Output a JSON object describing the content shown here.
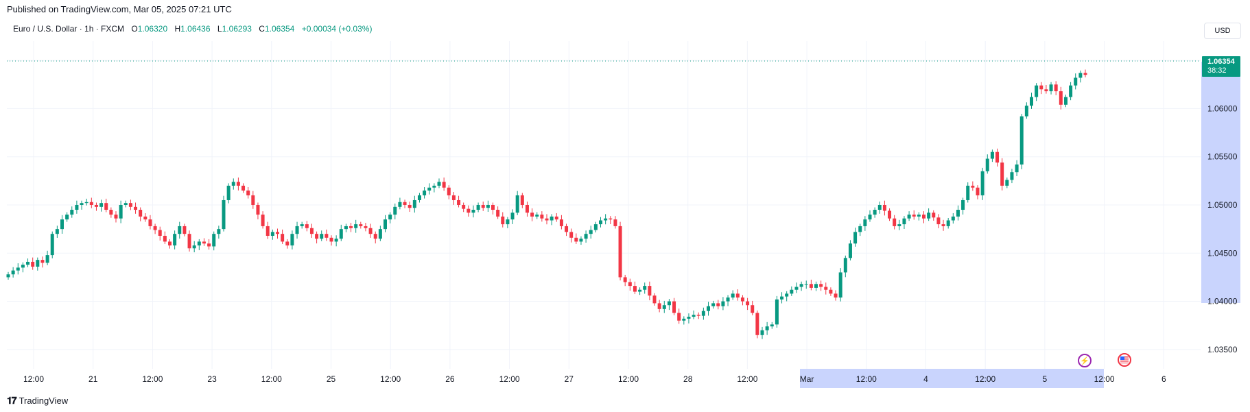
{
  "header": {
    "published": "Published on TradingView.com, Mar 05, 2025 07:21 UTC"
  },
  "legend": {
    "symbol": "Euro / U.S. Dollar · 1h · FXCM",
    "open_label": "O",
    "open": "1.06320",
    "high_label": "H",
    "high": "1.06436",
    "low_label": "L",
    "low": "1.06293",
    "close_label": "C",
    "close": "1.06354",
    "change": "+0.00034 (+0.03%)"
  },
  "price_scale": {
    "currency": "USD",
    "last_price": "1.06354",
    "countdown": "38:32"
  },
  "events": {
    "bolt_icon": "lightning-bolt-icon",
    "flag_icon": "us-flag-icon"
  },
  "footer": {
    "brand": "TradingView"
  },
  "colors": {
    "up": "#089981",
    "down": "#f23645",
    "grid": "#f0f3fa",
    "selection": "#c9d4fd"
  },
  "chart_data": {
    "type": "candlestick",
    "title": "Euro / U.S. Dollar · 1h · FXCM",
    "ylim": [
      1.033,
      1.067
    ],
    "y_ticks": [
      "1.06500",
      "1.06000",
      "1.05500",
      "1.05000",
      "1.04500",
      "1.04000",
      "1.03500"
    ],
    "x_ticks": [
      "12:00",
      "21",
      "12:00",
      "23",
      "12:00",
      "25",
      "12:00",
      "26",
      "12:00",
      "27",
      "12:00",
      "28",
      "12:00",
      "Mar",
      "12:00",
      "4",
      "12:00",
      "5",
      "12:00",
      "6"
    ],
    "grid": true,
    "candle_closes": [
      1.0428,
      1.0432,
      1.0435,
      1.0438,
      1.0441,
      1.0436,
      1.0443,
      1.044,
      1.0448,
      1.047,
      1.0475,
      1.0485,
      1.049,
      1.0495,
      1.05,
      1.0502,
      1.0503,
      1.05,
      1.0498,
      1.0502,
      1.0495,
      1.049,
      1.0486,
      1.05,
      1.0502,
      1.0498,
      1.0495,
      1.0488,
      1.0485,
      1.0478,
      1.0474,
      1.0468,
      1.0462,
      1.0458,
      1.047,
      1.0478,
      1.047,
      1.0455,
      1.0458,
      1.0462,
      1.046,
      1.0457,
      1.047,
      1.0475,
      1.0505,
      1.052,
      1.0524,
      1.052,
      1.0515,
      1.051,
      1.05,
      1.049,
      1.0478,
      1.0468,
      1.0472,
      1.047,
      1.0462,
      1.0458,
      1.047,
      1.0478,
      1.048,
      1.0476,
      1.047,
      1.0465,
      1.047,
      1.0466,
      1.0462,
      1.0465,
      1.0475,
      1.0478,
      1.0476,
      1.048,
      1.0478,
      1.0476,
      1.047,
      1.0465,
      1.0475,
      1.0485,
      1.049,
      1.0498,
      1.0503,
      1.05,
      1.0497,
      1.0505,
      1.051,
      1.0515,
      1.0518,
      1.052,
      1.0524,
      1.0518,
      1.051,
      1.0505,
      1.05,
      1.0496,
      1.0492,
      1.0495,
      1.05,
      1.0497,
      1.05,
      1.0495,
      1.0488,
      1.048,
      1.0485,
      1.0492,
      1.051,
      1.05,
      1.0492,
      1.0488,
      1.049,
      1.0486,
      1.0484,
      1.0488,
      1.0485,
      1.0478,
      1.0472,
      1.0466,
      1.0462,
      1.0465,
      1.047,
      1.0474,
      1.048,
      1.0484,
      1.0486,
      1.0485,
      1.0478,
      1.0425,
      1.042,
      1.0416,
      1.041,
      1.0412,
      1.0416,
      1.0406,
      1.0398,
      1.0392,
      1.0396,
      1.04,
      1.0388,
      1.038,
      1.0382,
      1.0384,
      1.0386,
      1.0385,
      1.039,
      1.0395,
      1.0398,
      1.0395,
      1.04,
      1.0404,
      1.0408,
      1.0404,
      1.04,
      1.0396,
      1.0388,
      1.0365,
      1.037,
      1.0374,
      1.0376,
      1.0402,
      1.0405,
      1.0408,
      1.0412,
      1.0415,
      1.0418,
      1.0418,
      1.0414,
      1.0418,
      1.0415,
      1.0412,
      1.0408,
      1.0404,
      1.043,
      1.0445,
      1.046,
      1.0472,
      1.0478,
      1.0485,
      1.049,
      1.0495,
      1.05,
      1.0494,
      1.0486,
      1.0478,
      1.048,
      1.0486,
      1.049,
      1.0488,
      1.049,
      1.0486,
      1.0492,
      1.0487,
      1.048,
      1.0478,
      1.0484,
      1.0488,
      1.0495,
      1.0505,
      1.052,
      1.0518,
      1.051,
      1.0535,
      1.0548,
      1.0555,
      1.0544,
      1.052,
      1.0526,
      1.0534,
      1.0542,
      1.0592,
      1.0603,
      1.0612,
      1.0624,
      1.062,
      1.0618,
      1.0625,
      1.0618,
      1.0604,
      1.0612,
      1.0624,
      1.0632,
      1.0637,
      1.0635
    ]
  }
}
